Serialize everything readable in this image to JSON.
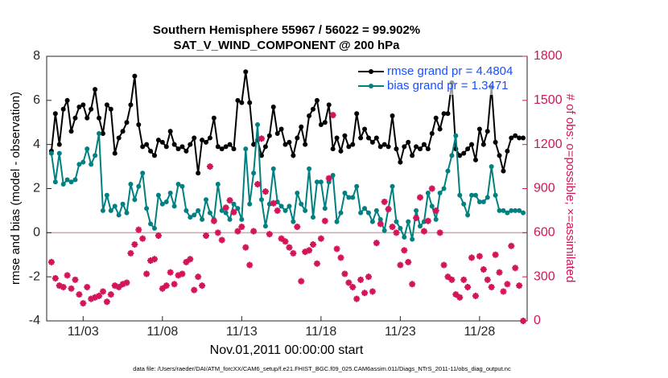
{
  "chart_data": {
    "type": "line",
    "title": "Southern Hemisphere 55967 / 56022 = 99.902%",
    "subtitle": "SAT_V_WIND_COMPONENT @ 200 hPa",
    "xlabel": "Nov.01,2011 00:00:00 start",
    "ylabel": "rmse and bias (model - observation)",
    "y2label": "# of obs: o=possible; ×=assimilated",
    "footnote": "data file: /Users/raeder/DAI/ATM_forcXX/CAM6_setup/f.e21.FHIST_BGC.f09_025.CAM6assim.011/Diags_NTrS_2011-11/obs_diag_output.nc",
    "legend_position": "upper right",
    "grid": false,
    "xlim": [
      0.7,
      31.0
    ],
    "xticks": [
      {
        "value": 3,
        "label": "11/03"
      },
      {
        "value": 8,
        "label": "11/08"
      },
      {
        "value": 13,
        "label": "11/13"
      },
      {
        "value": 18,
        "label": "11/18"
      },
      {
        "value": 23,
        "label": "11/23"
      },
      {
        "value": 28,
        "label": "11/28"
      }
    ],
    "ylim": [
      -4,
      8
    ],
    "yticks": [
      -4,
      -2,
      0,
      2,
      4,
      6,
      8
    ],
    "y2lim": [
      0,
      1800
    ],
    "y2ticks": [
      0,
      300,
      600,
      900,
      1200,
      1500,
      1800
    ],
    "x": [
      1,
      1.25,
      1.5,
      1.75,
      2,
      2.25,
      2.5,
      2.75,
      3,
      3.25,
      3.5,
      3.75,
      4,
      4.25,
      4.5,
      4.75,
      5,
      5.25,
      5.5,
      5.75,
      6,
      6.25,
      6.5,
      6.75,
      7,
      7.25,
      7.5,
      7.75,
      8,
      8.25,
      8.5,
      8.75,
      9,
      9.25,
      9.5,
      9.75,
      10,
      10.25,
      10.5,
      10.75,
      11,
      11.25,
      11.5,
      11.75,
      12,
      12.25,
      12.5,
      12.75,
      13,
      13.25,
      13.5,
      13.75,
      14,
      14.25,
      14.5,
      14.75,
      15,
      15.25,
      15.5,
      15.75,
      16,
      16.25,
      16.5,
      16.75,
      17,
      17.25,
      17.5,
      17.75,
      18,
      18.25,
      18.5,
      18.75,
      19,
      19.25,
      19.5,
      19.75,
      20,
      20.25,
      20.5,
      20.75,
      21,
      21.25,
      21.5,
      21.75,
      22,
      22.25,
      22.5,
      22.75,
      23,
      23.25,
      23.5,
      23.75,
      24,
      24.25,
      24.5,
      24.75,
      25,
      25.25,
      25.5,
      25.75,
      26,
      26.25,
      26.5,
      26.75,
      27,
      27.25,
      27.5,
      27.75,
      28,
      28.25,
      28.5,
      28.75,
      29,
      29.25,
      29.5,
      29.75,
      30,
      30.25,
      30.5,
      30.75
    ],
    "series": [
      {
        "name": "rmse grand pr = 4.4804",
        "color": "#000000",
        "values": [
          3.7,
          5.4,
          4.0,
          5.6,
          6.0,
          4.6,
          5.2,
          5.7,
          5.8,
          5.2,
          5.6,
          6.5,
          5.2,
          4.5,
          5.8,
          5.6,
          3.6,
          4.3,
          4.6,
          5.0,
          5.8,
          7.1,
          4.9,
          3.9,
          4.0,
          3.7,
          3.5,
          4.2,
          4.1,
          3.9,
          4.6,
          4.0,
          3.8,
          3.9,
          3.7,
          4.0,
          4.3,
          2.7,
          4.2,
          4.1,
          4.3,
          5.2,
          3.9,
          3.8,
          3.9,
          4.0,
          3.8,
          6.0,
          5.9,
          7.3,
          5.9,
          4.0,
          4.2,
          3.5,
          3.9,
          4.4,
          5.7,
          4.5,
          4.7,
          4.0,
          4.1,
          3.5,
          4.3,
          4.8,
          4.0,
          5.3,
          5.6,
          6.0,
          4.9,
          5.0,
          5.8,
          3.8,
          4.3,
          3.7,
          4.4,
          3.9,
          4.0,
          5.4,
          4.3,
          4.7,
          4.3,
          4.1,
          4.3,
          3.9,
          4.0,
          3.9,
          5.3,
          3.8,
          3.2,
          3.9,
          4.1,
          3.5,
          3.9,
          3.8,
          4.0,
          3.8,
          4.5,
          5.2,
          4.7,
          5.4,
          5.4,
          6.8,
          3.8,
          3.5,
          3.6,
          3.8,
          4.0,
          3.3,
          4.7,
          4.0,
          4.6,
          6.6,
          4.1,
          3.5,
          2.8,
          3.7,
          4.3,
          4.4,
          4.3,
          4.3
        ]
      },
      {
        "name": "bias grand pr = 1.3471",
        "color": "#008080",
        "values": [
          3.6,
          2.3,
          3.6,
          2.2,
          2.4,
          2.3,
          2.4,
          3.1,
          3.2,
          3.8,
          3.1,
          3.5,
          4.5,
          1.0,
          1.7,
          1.0,
          1.2,
          0.8,
          1.3,
          0.9,
          2.2,
          1.5,
          2.1,
          2.7,
          1.1,
          0.4,
          0.2,
          1.7,
          1.3,
          1.4,
          1.8,
          1.2,
          2.2,
          2.1,
          1.0,
          0.7,
          0.8,
          1.0,
          0.6,
          1.5,
          0.9,
          0.6,
          2.2,
          1.0,
          0.9,
          0.6,
          1.3,
          1.1,
          0.6,
          3.8,
          1.3,
          2.7,
          4.9,
          1.5,
          0.3,
          1.3,
          2.9,
          1.4,
          1.2,
          1.0,
          1.2,
          0.5,
          1.8,
          1.3,
          1.0,
          2.9,
          0.7,
          2.3,
          2.3,
          1.1,
          2.3,
          2.6,
          0.5,
          0.9,
          1.8,
          1.6,
          1.6,
          2.1,
          0.9,
          1.1,
          0.9,
          0.5,
          1.0,
          0.6,
          0.1,
          1.1,
          2.1,
          0.5,
          0.2,
          -0.2,
          0.5,
          -0.3,
          1.0,
          0.3,
          0.5,
          1.8,
          1.2,
          0.6,
          1.8,
          2.0,
          2.8,
          3.5,
          4.4,
          1.7,
          1.3,
          0.8,
          1.7,
          1.7,
          1.4,
          1.4,
          1.6,
          3.0,
          1.7,
          1.0,
          1.0,
          0.9,
          1.0,
          1.0,
          1.0,
          0.9
        ]
      },
      {
        "color": "#d4145a",
        "axis": "y2",
        "marker": "asterisk",
        "values": [
          400,
          290,
          240,
          230,
          310,
          220,
          280,
          180,
          120,
          230,
          150,
          160,
          170,
          200,
          130,
          180,
          240,
          230,
          250,
          260,
          460,
          520,
          620,
          560,
          320,
          410,
          420,
          580,
          220,
          240,
          330,
          250,
          310,
          320,
          400,
          420,
          210,
          300,
          240,
          580,
          1050,
          680,
          600,
          550,
          770,
          820,
          740,
          610,
          640,
          500,
          380,
          610,
          930,
          1240,
          880,
          590,
          800,
          750,
          560,
          540,
          500,
          460,
          640,
          270,
          470,
          480,
          520,
          390,
          560,
          680,
          970,
          1400,
          490,
          430,
          320,
          260,
          230,
          150,
          280,
          190,
          300,
          200,
          530,
          660,
          810,
          760,
          640,
          600,
          380,
          480,
          400,
          250,
          700,
          840,
          610,
          680,
          900,
          750,
          600,
          380,
          300,
          280,
          180,
          160,
          280,
          230,
          430,
          170,
          440,
          350,
          280,
          230,
          450,
          330,
          200,
          250,
          510,
          360,
          240,
          0
        ]
      }
    ]
  }
}
